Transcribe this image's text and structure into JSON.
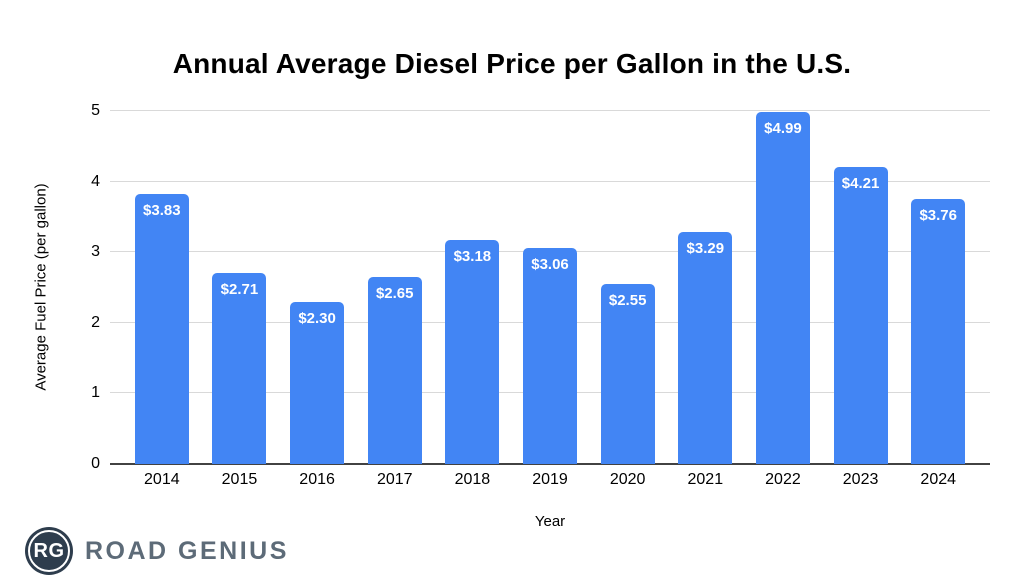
{
  "title": "Annual Average Diesel Price per Gallon in the U.S.",
  "chart_data": {
    "type": "bar",
    "title": "Annual Average Diesel Price per Gallon in the U.S.",
    "categories": [
      "2014",
      "2015",
      "2016",
      "2017",
      "2018",
      "2019",
      "2020",
      "2021",
      "2022",
      "2023",
      "2024"
    ],
    "values": [
      3.83,
      2.71,
      2.3,
      2.65,
      3.18,
      3.06,
      2.55,
      3.29,
      4.99,
      4.21,
      3.76
    ],
    "bar_labels": [
      "$3.83",
      "$2.71",
      "$2.30",
      "$2.65",
      "$3.18",
      "$3.06",
      "$2.55",
      "$3.29",
      "$4.99",
      "$4.21",
      "$3.76"
    ],
    "xlabel": "Year",
    "ylabel": "Average Fuel Price (per gallon)",
    "ylim": [
      0,
      5
    ],
    "yticks": [
      0,
      1,
      2,
      3,
      4,
      5
    ],
    "grid": true,
    "legend": false
  },
  "colors": {
    "bar": "#4285F4",
    "bar_label": "#FFFFFF",
    "gridline": "#D9D9D9",
    "axis_line": "#424242",
    "text": "#000000",
    "background": "#FFFFFF",
    "logo_circle": "#2E3D4D",
    "logo_text": "#5D6B78"
  },
  "logo": {
    "monogram": "RG",
    "brand": "ROAD GENIUS"
  }
}
